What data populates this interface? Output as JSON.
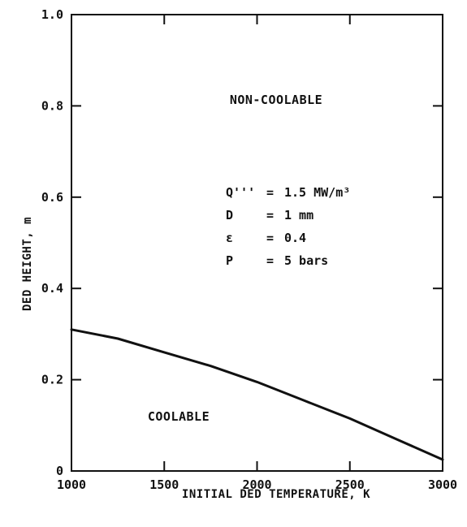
{
  "chart_data": {
    "type": "line",
    "xlabel": "INITIAL DED TEMPERATURE, K",
    "ylabel": "DED HEIGHT, m",
    "xlim": [
      1000,
      3000
    ],
    "ylim": [
      0,
      1.0
    ],
    "x_ticks": [
      1000,
      1500,
      2000,
      2500,
      3000
    ],
    "x_tick_labels": [
      "1000",
      "1500",
      "2000",
      "2500",
      "3000"
    ],
    "y_ticks": [
      0,
      0.2,
      0.4,
      0.6,
      0.8,
      1.0
    ],
    "y_tick_labels": [
      "0",
      "0.2",
      "0.4",
      "0.6",
      "0.8",
      "1.0"
    ],
    "grid": false,
    "series": [
      {
        "x": [
          1000,
          1250,
          1500,
          1750,
          2000,
          2250,
          2500,
          2750,
          3000
        ],
        "y": [
          0.31,
          0.29,
          0.26,
          0.23,
          0.195,
          0.155,
          0.115,
          0.07,
          0.025
        ]
      }
    ],
    "annotations": {
      "region_above": "NON-COOLABLE",
      "region_below": "COOLABLE",
      "params": [
        {
          "symbol": "Q'''",
          "sep": "=",
          "value": "1.5 MW/m³"
        },
        {
          "symbol": "D",
          "sep": "=",
          "value": "1 mm"
        },
        {
          "symbol": "ε",
          "sep": "=",
          "value": "0.4"
        },
        {
          "symbol": "P",
          "sep": "=",
          "value": "5 bars"
        }
      ]
    }
  }
}
